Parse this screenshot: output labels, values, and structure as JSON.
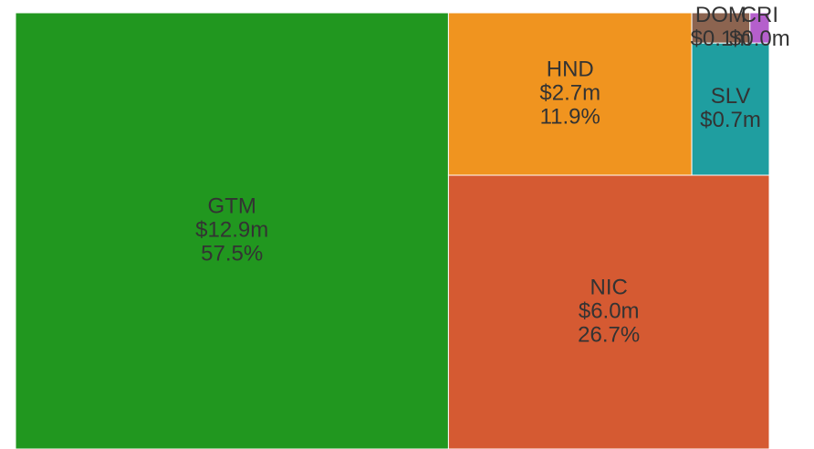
{
  "chart_data": {
    "type": "treemap",
    "categories": [
      "GTM",
      "NIC",
      "HND",
      "SLV",
      "DOM",
      "CRI"
    ],
    "values": [
      12.9,
      6.0,
      2.7,
      0.7,
      0.12,
      0.04
    ],
    "value_labels": [
      "$12.9m",
      "$6.0m",
      "$2.7m",
      "$0.7m",
      "$0.1m",
      "$0.0m"
    ],
    "share_labels": [
      "57.5%",
      "26.7%",
      "11.9%",
      null,
      null,
      null
    ],
    "colors": [
      "#21971f",
      "#d55a32",
      "#f0941f",
      "#1f9ea0",
      "#8c6450",
      "#b55fcc"
    ]
  }
}
